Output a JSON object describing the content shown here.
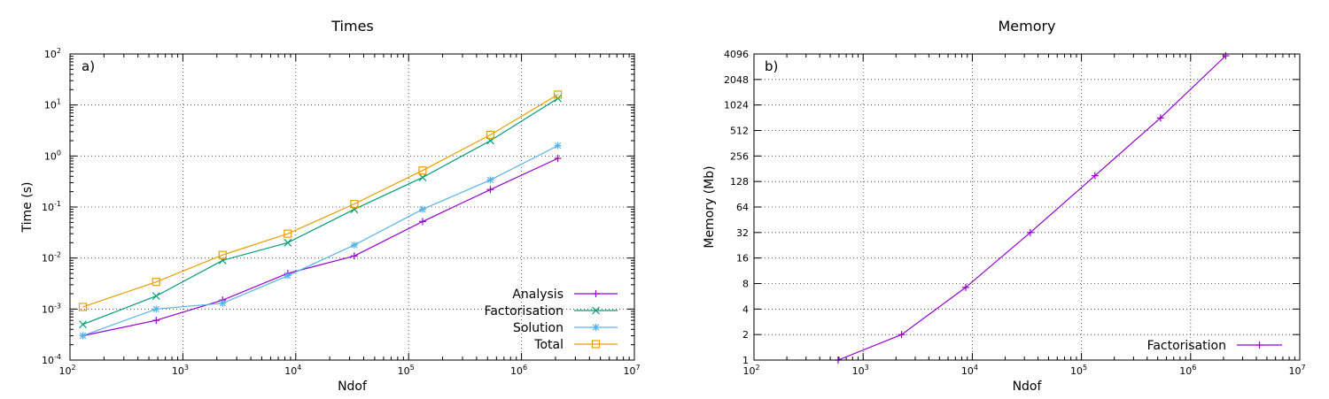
{
  "chart_data": [
    {
      "type": "line",
      "title": "Times",
      "panel_label": "a)",
      "xlabel": "Ndof",
      "ylabel": "Time (s)",
      "xscale": "log",
      "yscale": "log",
      "xlim": [
        100,
        10000000
      ],
      "ylim": [
        0.0001,
        100
      ],
      "grid": true,
      "legend_position": "bottom-right",
      "x_tick_labels": [
        {
          "value": 100,
          "base": "10",
          "exp": "2"
        },
        {
          "value": 1000,
          "base": "10",
          "exp": "3"
        },
        {
          "value": 10000,
          "base": "10",
          "exp": "4"
        },
        {
          "value": 100000,
          "base": "10",
          "exp": "5"
        },
        {
          "value": 1000000,
          "base": "10",
          "exp": "6"
        },
        {
          "value": 10000000,
          "base": "10",
          "exp": "7"
        }
      ],
      "y_tick_labels": [
        {
          "value": 0.0001,
          "base": "10",
          "exp": "-4"
        },
        {
          "value": 0.001,
          "base": "10",
          "exp": "-3"
        },
        {
          "value": 0.01,
          "base": "10",
          "exp": "-2"
        },
        {
          "value": 0.1,
          "base": "10",
          "exp": "-1"
        },
        {
          "value": 1,
          "base": "10",
          "exp": "0"
        },
        {
          "value": 10,
          "base": "10",
          "exp": "1"
        },
        {
          "value": 100,
          "base": "10",
          "exp": "2"
        }
      ],
      "x": [
        130,
        580,
        2250,
        8500,
        33000,
        133000,
        530000,
        2100000
      ],
      "series": [
        {
          "name": "Analysis",
          "color": "#9400d3",
          "marker": "plus",
          "values": [
            0.0003,
            0.0006,
            0.0015,
            0.005,
            0.011,
            0.052,
            0.22,
            0.9
          ]
        },
        {
          "name": "Factorisation",
          "color": "#009e73",
          "marker": "cross",
          "values": [
            0.0005,
            0.0018,
            0.009,
            0.02,
            0.09,
            0.38,
            2.0,
            13.5
          ]
        },
        {
          "name": "Solution",
          "color": "#56b4e9",
          "marker": "star",
          "values": [
            0.0003,
            0.001,
            0.0013,
            0.0045,
            0.018,
            0.09,
            0.34,
            1.6
          ]
        },
        {
          "name": "Total",
          "color": "#e69f00",
          "marker": "square",
          "values": [
            0.0011,
            0.0034,
            0.0115,
            0.03,
            0.115,
            0.52,
            2.6,
            16.0
          ]
        }
      ]
    },
    {
      "type": "line",
      "title": "Memory",
      "panel_label": "b)",
      "xlabel": "Ndof",
      "ylabel": "Memory (Mb)",
      "xscale": "log",
      "yscale": "log2",
      "xlim": [
        100,
        10000000
      ],
      "ylim": [
        1,
        4096
      ],
      "grid": true,
      "legend_position": "bottom-right",
      "x_tick_labels": [
        {
          "value": 100,
          "base": "10",
          "exp": "2"
        },
        {
          "value": 1000,
          "base": "10",
          "exp": "3"
        },
        {
          "value": 10000,
          "base": "10",
          "exp": "4"
        },
        {
          "value": 100000,
          "base": "10",
          "exp": "5"
        },
        {
          "value": 1000000,
          "base": "10",
          "exp": "6"
        },
        {
          "value": 10000000,
          "base": "10",
          "exp": "7"
        }
      ],
      "y_tick_labels": [
        {
          "value": 1,
          "label": "1"
        },
        {
          "value": 2,
          "label": "2"
        },
        {
          "value": 4,
          "label": "4"
        },
        {
          "value": 8,
          "label": "8"
        },
        {
          "value": 16,
          "label": "16"
        },
        {
          "value": 32,
          "label": "32"
        },
        {
          "value": 64,
          "label": "64"
        },
        {
          "value": 128,
          "label": "128"
        },
        {
          "value": 256,
          "label": "256"
        },
        {
          "value": 512,
          "label": "512"
        },
        {
          "value": 1024,
          "label": "1024"
        },
        {
          "value": 2048,
          "label": "2048"
        },
        {
          "value": 4096,
          "label": "4096"
        }
      ],
      "x": [
        590,
        2250,
        8700,
        34000,
        133000,
        530000,
        2100000
      ],
      "series": [
        {
          "name": "Factorisation",
          "color": "#9400d3",
          "marker": "plus",
          "values": [
            1.0,
            2.0,
            7.2,
            32.0,
            150.0,
            720.0,
            3900.0
          ]
        }
      ]
    }
  ]
}
